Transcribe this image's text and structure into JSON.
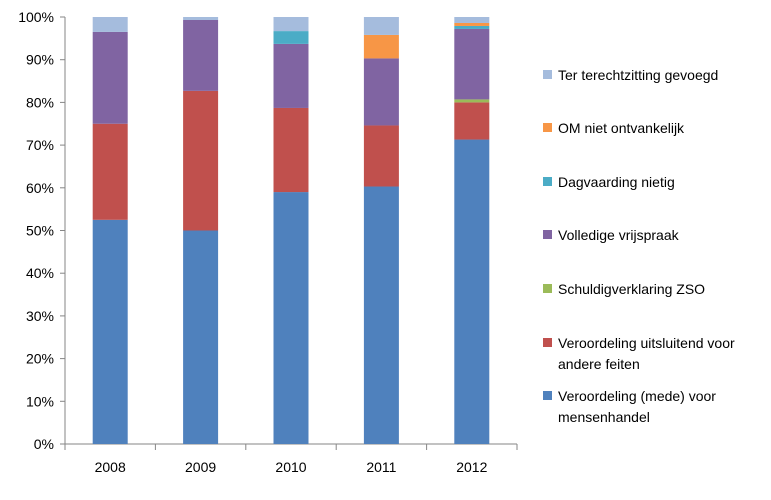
{
  "chart_data": {
    "type": "bar",
    "stacked": true,
    "percent": true,
    "categories": [
      "2008",
      "2009",
      "2010",
      "2011",
      "2012"
    ],
    "ylim": [
      0,
      100
    ],
    "y_ticks": [
      "0%",
      "10%",
      "20%",
      "30%",
      "40%",
      "50%",
      "60%",
      "70%",
      "80%",
      "90%",
      "100%"
    ],
    "grid": false,
    "legend_position": "right",
    "series": [
      {
        "name": "Veroordeling (mede) voor mensenhandel",
        "color": "#4F81BD",
        "values": [
          52.5,
          50.0,
          59.0,
          60.3,
          71.3
        ]
      },
      {
        "name": "Veroordeling uitsluitend voor andere feiten",
        "color": "#C0504D",
        "values": [
          22.5,
          32.7,
          19.7,
          14.3,
          8.7
        ]
      },
      {
        "name": "Schuldigverklaring ZSO",
        "color": "#9BBB59",
        "values": [
          0,
          0,
          0,
          0,
          0.7
        ]
      },
      {
        "name": "Volledige vrijspraak",
        "color": "#8064A2",
        "values": [
          21.5,
          16.6,
          15.0,
          15.7,
          16.5
        ]
      },
      {
        "name": "Dagvaarding nietig",
        "color": "#4BACC6",
        "values": [
          0,
          0,
          3.0,
          0,
          0.7
        ]
      },
      {
        "name": "OM niet ontvankelijk",
        "color": "#F79646",
        "values": [
          0,
          0,
          0,
          5.5,
          0.7
        ]
      },
      {
        "name": "Ter terechtzitting gevoegd",
        "color": "#A5BCDD",
        "values": [
          3.5,
          0.7,
          3.3,
          4.2,
          1.4
        ]
      }
    ],
    "legend_order": [
      "Ter terechtzitting gevoegd",
      "OM niet ontvankelijk",
      "Dagvaarding nietig",
      "Volledige vrijspraak",
      "Schuldigverklaring ZSO",
      "Veroordeling uitsluitend voor andere feiten",
      "Veroordeling (mede) voor mensenhandel"
    ],
    "legend_text": [
      [
        "Ter terechtzitting gevoegd"
      ],
      [
        "OM niet ontvankelijk"
      ],
      [
        "Dagvaarding nietig"
      ],
      [
        "Volledige vrijspraak"
      ],
      [
        "Schuldigverklaring ZSO"
      ],
      [
        "Veroordeling uitsluitend voor",
        "andere feiten"
      ],
      [
        "Veroordeling (mede) voor",
        "mensenhandel"
      ]
    ]
  }
}
